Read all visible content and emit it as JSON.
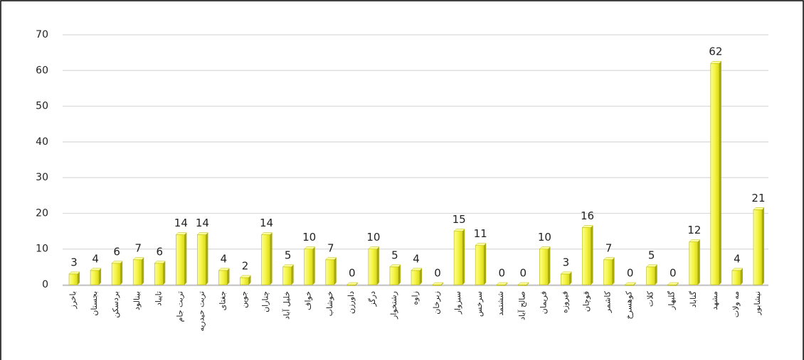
{
  "chart_data": {
    "type": "bar",
    "categories": [
      "باخرز",
      "بجستان",
      "بردسکن",
      "بینالود",
      "تایباد",
      "تربت جام",
      "تربت حیدریه",
      "جغتای",
      "جوین",
      "چناران",
      "خلیل آباد",
      "خواف",
      "خوشاب",
      "داورزن",
      "درگز",
      "رشتخوار",
      "زاوه",
      "زبرخان",
      "سبزوار",
      "سرخس",
      "ششتمد",
      "صالح آباد",
      "فریمان",
      "فیروزه",
      "قوچان",
      "کاشمر",
      "کوهسرخ",
      "کلات",
      "گلبهار",
      "گناباد",
      "مشهد",
      "مه ولات",
      "نیشابور"
    ],
    "values": [
      3,
      4,
      6,
      7,
      6,
      14,
      14,
      4,
      2,
      14,
      5,
      10,
      7,
      0,
      10,
      5,
      4,
      0,
      15,
      11,
      0,
      0,
      10,
      3,
      16,
      7,
      0,
      5,
      0,
      12,
      62,
      4,
      21
    ],
    "color": "#f2f23a",
    "ylim": [
      0,
      70
    ],
    "yticks": [
      0,
      10,
      20,
      30,
      40,
      50,
      60,
      70
    ],
    "grid": true
  }
}
